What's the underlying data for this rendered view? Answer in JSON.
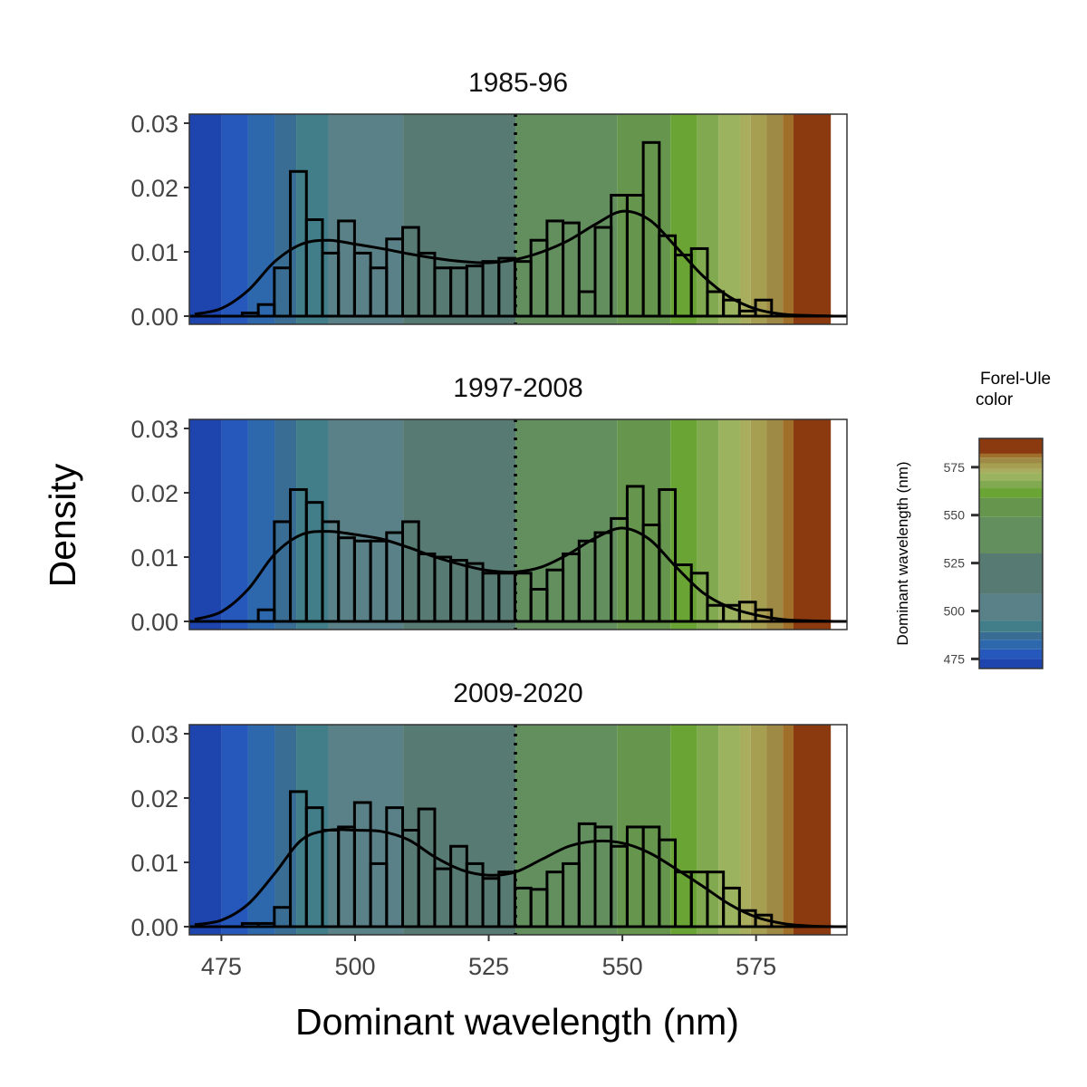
{
  "chart_data": {
    "type": "histogram",
    "xlabel": "Dominant wavelength (nm)",
    "ylabel": "Density",
    "xlim": [
      469,
      592
    ],
    "ylim": [
      0,
      0.031
    ],
    "x_ticks": [
      475,
      500,
      525,
      550,
      575
    ],
    "x_tick_labels": [
      "475",
      "500",
      "525",
      "550",
      "575"
    ],
    "y_ticks": [
      0,
      0.01,
      0.02,
      0.03
    ],
    "y_tick_labels": [
      "0.00",
      "0.01",
      "0.02",
      "0.03"
    ],
    "reference_line_x": 530,
    "bin_edges": [
      469.9,
      472.9,
      475.9,
      478.9,
      481.9,
      484.9,
      487.9,
      490.9,
      493.9,
      496.9,
      499.9,
      502.9,
      505.9,
      508.9,
      511.9,
      514.9,
      517.9,
      520.9,
      523.9,
      526.9,
      529.9,
      532.9,
      535.9,
      538.9,
      541.9,
      544.9,
      547.9,
      550.9,
      553.9,
      556.9,
      559.9,
      562.9,
      565.9,
      568.9,
      571.9,
      574.9,
      577.9,
      580.9,
      583.9,
      586.9,
      589.9
    ],
    "background_bands": [
      {
        "from": 469,
        "to": 475,
        "color": "#1e44ae"
      },
      {
        "from": 475,
        "to": 480,
        "color": "#2657ba"
      },
      {
        "from": 480,
        "to": 485,
        "color": "#2d68ad"
      },
      {
        "from": 485,
        "to": 489,
        "color": "#3a6d93"
      },
      {
        "from": 489,
        "to": 495,
        "color": "#427e8a"
      },
      {
        "from": 495,
        "to": 509,
        "color": "#5a8088"
      },
      {
        "from": 509,
        "to": 530,
        "color": "#577a73"
      },
      {
        "from": 530,
        "to": 549,
        "color": "#638f5f"
      },
      {
        "from": 549,
        "to": 559,
        "color": "#66964d"
      },
      {
        "from": 559,
        "to": 564,
        "color": "#6aa434"
      },
      {
        "from": 564,
        "to": 568,
        "color": "#81a950"
      },
      {
        "from": 568,
        "to": 572,
        "color": "#9bb35e"
      },
      {
        "from": 572,
        "to": 574,
        "color": "#a8ae5d"
      },
      {
        "from": 574,
        "to": 577,
        "color": "#a69f52"
      },
      {
        "from": 577,
        "to": 580,
        "color": "#9e8a45"
      },
      {
        "from": 580,
        "to": 582,
        "color": "#a0702a"
      },
      {
        "from": 582,
        "to": 589,
        "color": "#8b3a0f"
      },
      {
        "from": 589,
        "to": 592,
        "color": "#ffffff"
      }
    ],
    "panels": [
      {
        "title": "1985-96",
        "densities": [
          0,
          0,
          0,
          0.0005,
          0.0018,
          0.0075,
          0.0225,
          0.015,
          0.0098,
          0.0148,
          0.0098,
          0.0075,
          0.012,
          0.0138,
          0.0098,
          0.0075,
          0.0075,
          0.0078,
          0.0085,
          0.009,
          0.0085,
          0.0118,
          0.0148,
          0.0145,
          0.0038,
          0.0138,
          0.0188,
          0.0188,
          0.027,
          0.0125,
          0.0095,
          0.0105,
          0.0038,
          0.0025,
          0.0008,
          0.0025,
          0,
          0,
          0,
          0
        ],
        "density_curve": {
          "x": [
            470,
            475,
            480,
            485,
            490,
            495,
            500,
            505,
            510,
            515,
            520,
            525,
            530,
            535,
            540,
            545,
            550,
            555,
            560,
            565,
            570,
            575,
            580,
            585,
            590
          ],
          "y": [
            0.0003,
            0.0012,
            0.004,
            0.0085,
            0.0112,
            0.0118,
            0.0112,
            0.0105,
            0.0097,
            0.009,
            0.0085,
            0.0083,
            0.0088,
            0.01,
            0.0118,
            0.0143,
            0.0163,
            0.015,
            0.0108,
            0.0063,
            0.003,
            0.0011,
            0.0003,
            0.0001,
            0
          ]
        }
      },
      {
        "title": "1997-2008",
        "densities": [
          0,
          0,
          0,
          0,
          0.0018,
          0.0155,
          0.0205,
          0.0185,
          0.0155,
          0.013,
          0.0125,
          0.0125,
          0.0138,
          0.0155,
          0.0105,
          0.01,
          0.0095,
          0.009,
          0.0075,
          0.0075,
          0.0075,
          0.005,
          0.008,
          0.0105,
          0.0125,
          0.0138,
          0.016,
          0.021,
          0.015,
          0.0205,
          0.0088,
          0.0075,
          0.0025,
          0.0025,
          0.003,
          0.0018,
          0,
          0,
          0,
          0
        ],
        "density_curve": {
          "x": [
            470,
            475,
            480,
            485,
            490,
            495,
            500,
            505,
            510,
            515,
            520,
            525,
            530,
            535,
            540,
            545,
            550,
            555,
            560,
            565,
            570,
            575,
            580,
            585,
            590
          ],
          "y": [
            0.0003,
            0.0015,
            0.005,
            0.0105,
            0.0135,
            0.014,
            0.0135,
            0.0128,
            0.0115,
            0.01,
            0.0088,
            0.0079,
            0.0077,
            0.0085,
            0.0105,
            0.013,
            0.0145,
            0.0128,
            0.0085,
            0.0045,
            0.0022,
            0.001,
            0.0003,
            0.0001,
            0
          ]
        }
      },
      {
        "title": "2009-2020",
        "densities": [
          0,
          0,
          0,
          0.0005,
          0.0005,
          0.003,
          0.021,
          0.0185,
          0.015,
          0.0155,
          0.0193,
          0.0098,
          0.0185,
          0.015,
          0.0183,
          0.009,
          0.0125,
          0.0098,
          0.0075,
          0.0085,
          0.006,
          0.0058,
          0.0085,
          0.0098,
          0.016,
          0.0155,
          0.0125,
          0.0155,
          0.0155,
          0.0135,
          0.0085,
          0.0085,
          0.0085,
          0.006,
          0.0025,
          0.0018,
          0,
          0,
          0,
          0
        ],
        "density_curve": {
          "x": [
            470,
            475,
            480,
            485,
            490,
            495,
            500,
            505,
            510,
            515,
            520,
            525,
            530,
            535,
            540,
            545,
            550,
            555,
            560,
            565,
            570,
            575,
            580,
            585,
            590
          ],
          "y": [
            0.0003,
            0.001,
            0.0035,
            0.0083,
            0.0135,
            0.015,
            0.015,
            0.0148,
            0.0135,
            0.0108,
            0.0088,
            0.008,
            0.0085,
            0.0105,
            0.0125,
            0.0133,
            0.013,
            0.0115,
            0.009,
            0.0063,
            0.0035,
            0.0015,
            0.0005,
            0.0001,
            0
          ]
        }
      }
    ],
    "legend": {
      "title_lines": [
        "Forel-Ule",
        "color"
      ],
      "axis_title": "Dominant wavelength (nm)",
      "range": [
        470,
        590
      ],
      "ticks": [
        475,
        500,
        525,
        550,
        575
      ],
      "tick_labels": [
        "475",
        "500",
        "525",
        "550",
        "575"
      ],
      "colors": [
        "#1e44ae",
        "#2657ba",
        "#2d68ad",
        "#3a6d93",
        "#427e8a",
        "#5a8088",
        "#577a73",
        "#638f5f",
        "#66964d",
        "#6aa434",
        "#81a950",
        "#9bb35e",
        "#a8ae5d",
        "#a69f52",
        "#9e8a45",
        "#a0702a",
        "#8b3a0f"
      ],
      "color_stops": [
        470,
        475,
        480,
        485,
        489,
        495,
        509,
        530,
        549,
        559,
        564,
        568,
        572,
        574,
        577,
        580,
        582,
        590
      ]
    }
  }
}
